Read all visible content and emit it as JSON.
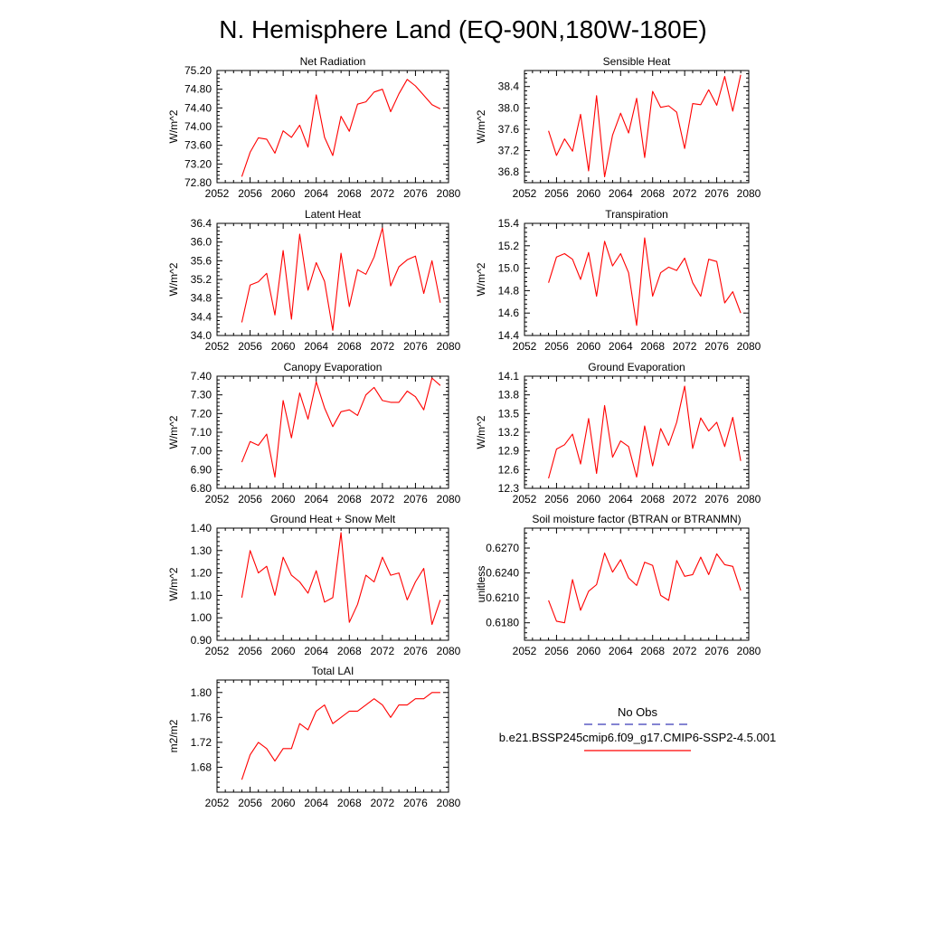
{
  "figure": {
    "title": "N. Hemisphere Land (EQ-90N,180W-180E)"
  },
  "legend": {
    "obs_label": "No Obs",
    "obs_color": "#3a3ab8",
    "model_label": "b.e21.BSSP245cmip6.f09_g17.CMIP6-SSP2-4.5.001",
    "model_color": "#ff0000"
  },
  "colors": {
    "series": "#ff0000",
    "axis": "#000000"
  },
  "chart_data": [
    {
      "type": "line",
      "title": "Net Radiation",
      "ylabel": "W/m^2",
      "xlim": [
        2052,
        2080
      ],
      "ylim": [
        72.8,
        75.2
      ],
      "xticks": [
        2052,
        2056,
        2060,
        2064,
        2068,
        2072,
        2076,
        2080
      ],
      "yticks": [
        "72.80",
        "73.20",
        "73.60",
        "74.00",
        "74.40",
        "74.80",
        "75.20"
      ],
      "x": [
        2055,
        2056,
        2057,
        2058,
        2059,
        2060,
        2061,
        2062,
        2063,
        2064,
        2065,
        2066,
        2067,
        2068,
        2069,
        2070,
        2071,
        2072,
        2073,
        2074,
        2075,
        2076,
        2077,
        2078,
        2079
      ],
      "series": [
        {
          "values": [
            72.93,
            73.45,
            73.76,
            73.73,
            73.43,
            73.91,
            73.77,
            74.03,
            73.56,
            74.68,
            73.77,
            73.38,
            74.22,
            73.9,
            74.48,
            74.53,
            74.74,
            74.8,
            74.32,
            74.7,
            75.01,
            74.87,
            74.67,
            74.47,
            74.38
          ]
        }
      ]
    },
    {
      "type": "line",
      "title": "Sensible Heat",
      "ylabel": "W/m^2",
      "xlim": [
        2052,
        2080
      ],
      "ylim": [
        36.6,
        38.7
      ],
      "xticks": [
        2052,
        2056,
        2060,
        2064,
        2068,
        2072,
        2076,
        2080
      ],
      "yticks": [
        "36.8",
        "37.2",
        "37.6",
        "38.0",
        "38.4"
      ],
      "x": [
        2055,
        2056,
        2057,
        2058,
        2059,
        2060,
        2061,
        2062,
        2063,
        2064,
        2065,
        2066,
        2067,
        2068,
        2069,
        2070,
        2071,
        2072,
        2073,
        2074,
        2075,
        2076,
        2077,
        2078,
        2079
      ],
      "series": [
        {
          "values": [
            37.57,
            37.11,
            37.42,
            37.19,
            37.88,
            36.82,
            38.23,
            36.71,
            37.49,
            37.9,
            37.53,
            38.18,
            37.07,
            38.31,
            38.01,
            38.04,
            37.92,
            37.24,
            38.08,
            38.06,
            38.34,
            38.05,
            38.59,
            37.94,
            38.62
          ]
        }
      ]
    },
    {
      "type": "line",
      "title": "Latent Heat",
      "ylabel": "W/m^2",
      "xlim": [
        2052,
        2080
      ],
      "ylim": [
        34.0,
        36.4
      ],
      "xticks": [
        2052,
        2056,
        2060,
        2064,
        2068,
        2072,
        2076,
        2080
      ],
      "yticks": [
        "34.0",
        "34.4",
        "34.8",
        "35.2",
        "35.6",
        "36.0",
        "36.4"
      ],
      "x": [
        2055,
        2056,
        2057,
        2058,
        2059,
        2060,
        2061,
        2062,
        2063,
        2064,
        2065,
        2066,
        2067,
        2068,
        2069,
        2070,
        2071,
        2072,
        2073,
        2074,
        2075,
        2076,
        2077,
        2078,
        2079
      ],
      "series": [
        {
          "values": [
            34.28,
            35.08,
            35.15,
            35.33,
            34.44,
            35.82,
            34.35,
            36.17,
            34.97,
            35.56,
            35.16,
            34.11,
            35.76,
            34.62,
            35.41,
            35.31,
            35.68,
            36.3,
            35.06,
            35.47,
            35.62,
            35.7,
            34.9,
            35.6,
            34.7
          ]
        }
      ]
    },
    {
      "type": "line",
      "title": "Transpiration",
      "ylabel": "W/m^2",
      "xlim": [
        2052,
        2080
      ],
      "ylim": [
        14.4,
        15.4
      ],
      "xticks": [
        2052,
        2056,
        2060,
        2064,
        2068,
        2072,
        2076,
        2080
      ],
      "yticks": [
        "14.4",
        "14.6",
        "14.8",
        "15.0",
        "15.2",
        "15.4"
      ],
      "x": [
        2055,
        2056,
        2057,
        2058,
        2059,
        2060,
        2061,
        2062,
        2063,
        2064,
        2065,
        2066,
        2067,
        2068,
        2069,
        2070,
        2071,
        2072,
        2073,
        2074,
        2075,
        2076,
        2077,
        2078,
        2079
      ],
      "series": [
        {
          "values": [
            14.87,
            15.1,
            15.13,
            15.08,
            14.9,
            15.14,
            14.75,
            15.24,
            15.02,
            15.13,
            14.96,
            14.49,
            15.27,
            14.75,
            14.96,
            15.01,
            14.98,
            15.09,
            14.87,
            14.75,
            15.08,
            15.06,
            14.69,
            14.79,
            14.6
          ]
        }
      ]
    },
    {
      "type": "line",
      "title": "Canopy Evaporation",
      "ylabel": "W/m^2",
      "xlim": [
        2052,
        2080
      ],
      "ylim": [
        6.8,
        7.4
      ],
      "xticks": [
        2052,
        2056,
        2060,
        2064,
        2068,
        2072,
        2076,
        2080
      ],
      "yticks": [
        "6.80",
        "6.90",
        "7.00",
        "7.10",
        "7.20",
        "7.30",
        "7.40"
      ],
      "x": [
        2055,
        2056,
        2057,
        2058,
        2059,
        2060,
        2061,
        2062,
        2063,
        2064,
        2065,
        2066,
        2067,
        2068,
        2069,
        2070,
        2071,
        2072,
        2073,
        2074,
        2075,
        2076,
        2077,
        2078,
        2079
      ],
      "series": [
        {
          "values": [
            6.94,
            7.05,
            7.03,
            7.09,
            6.86,
            7.27,
            7.07,
            7.31,
            7.17,
            7.37,
            7.23,
            7.13,
            7.21,
            7.22,
            7.19,
            7.3,
            7.34,
            7.27,
            7.26,
            7.26,
            7.32,
            7.29,
            7.22,
            7.39,
            7.35
          ]
        }
      ]
    },
    {
      "type": "line",
      "title": "Ground Evaporation",
      "ylabel": "W/m^2",
      "xlim": [
        2052,
        2080
      ],
      "ylim": [
        12.3,
        14.1
      ],
      "xticks": [
        2052,
        2056,
        2060,
        2064,
        2068,
        2072,
        2076,
        2080
      ],
      "yticks": [
        "12.3",
        "12.6",
        "12.9",
        "13.2",
        "13.5",
        "13.8",
        "14.1"
      ],
      "x": [
        2055,
        2056,
        2057,
        2058,
        2059,
        2060,
        2061,
        2062,
        2063,
        2064,
        2065,
        2066,
        2067,
        2068,
        2069,
        2070,
        2071,
        2072,
        2073,
        2074,
        2075,
        2076,
        2077,
        2078,
        2079
      ],
      "series": [
        {
          "values": [
            12.46,
            12.93,
            13.0,
            13.17,
            12.69,
            13.42,
            12.54,
            13.63,
            12.8,
            13.06,
            12.97,
            12.48,
            13.3,
            12.66,
            13.26,
            12.99,
            13.36,
            13.94,
            12.94,
            13.43,
            13.22,
            13.36,
            12.97,
            13.44,
            12.74
          ]
        }
      ]
    },
    {
      "type": "line",
      "title": "Ground Heat + Snow Melt",
      "ylabel": "W/m^2",
      "xlim": [
        2052,
        2080
      ],
      "ylim": [
        0.9,
        1.4
      ],
      "xticks": [
        2052,
        2056,
        2060,
        2064,
        2068,
        2072,
        2076,
        2080
      ],
      "yticks": [
        "0.90",
        "1.00",
        "1.10",
        "1.20",
        "1.30",
        "1.40"
      ],
      "x": [
        2055,
        2056,
        2057,
        2058,
        2059,
        2060,
        2061,
        2062,
        2063,
        2064,
        2065,
        2066,
        2067,
        2068,
        2069,
        2070,
        2071,
        2072,
        2073,
        2074,
        2075,
        2076,
        2077,
        2078,
        2079
      ],
      "series": [
        {
          "values": [
            1.09,
            1.3,
            1.2,
            1.23,
            1.1,
            1.27,
            1.19,
            1.16,
            1.11,
            1.21,
            1.07,
            1.09,
            1.38,
            0.98,
            1.06,
            1.19,
            1.16,
            1.27,
            1.19,
            1.2,
            1.08,
            1.16,
            1.22,
            0.97,
            1.08
          ]
        }
      ]
    },
    {
      "type": "line",
      "title": "Soil moisture factor (BTRAN or BTRANMN)",
      "ylabel": "unitless",
      "xlim": [
        2052,
        2080
      ],
      "ylim": [
        0.6159,
        0.6294
      ],
      "xticks": [
        2052,
        2056,
        2060,
        2064,
        2068,
        2072,
        2076,
        2080
      ],
      "yticks": [
        "0.6180",
        "0.6210",
        "0.6240",
        "0.6270"
      ],
      "x": [
        2055,
        2056,
        2057,
        2058,
        2059,
        2060,
        2061,
        2062,
        2063,
        2064,
        2065,
        2066,
        2067,
        2068,
        2069,
        2070,
        2071,
        2072,
        2073,
        2074,
        2075,
        2076,
        2077,
        2078,
        2079
      ],
      "series": [
        {
          "values": [
            0.6207,
            0.6182,
            0.618,
            0.6232,
            0.6195,
            0.6218,
            0.6226,
            0.6264,
            0.6241,
            0.6256,
            0.6234,
            0.6225,
            0.6253,
            0.6249,
            0.6213,
            0.6207,
            0.6255,
            0.6236,
            0.6238,
            0.6259,
            0.6238,
            0.6263,
            0.625,
            0.6248,
            0.6219
          ]
        }
      ]
    },
    {
      "type": "line",
      "title": "Total LAI",
      "ylabel": "m2/m2",
      "xlim": [
        2052,
        2080
      ],
      "ylim": [
        1.64,
        1.82
      ],
      "xticks": [
        2052,
        2056,
        2060,
        2064,
        2068,
        2072,
        2076,
        2080
      ],
      "yticks": [
        "1.68",
        "1.72",
        "1.76",
        "1.80"
      ],
      "x": [
        2055,
        2056,
        2057,
        2058,
        2059,
        2060,
        2061,
        2062,
        2063,
        2064,
        2065,
        2066,
        2067,
        2068,
        2069,
        2070,
        2071,
        2072,
        2073,
        2074,
        2075,
        2076,
        2077,
        2078,
        2079
      ],
      "series": [
        {
          "values": [
            1.66,
            1.7,
            1.72,
            1.71,
            1.69,
            1.71,
            1.71,
            1.75,
            1.74,
            1.77,
            1.78,
            1.75,
            1.76,
            1.77,
            1.77,
            1.78,
            1.79,
            1.78,
            1.76,
            1.78,
            1.78,
            1.79,
            1.79,
            1.8,
            1.8
          ]
        }
      ]
    }
  ]
}
